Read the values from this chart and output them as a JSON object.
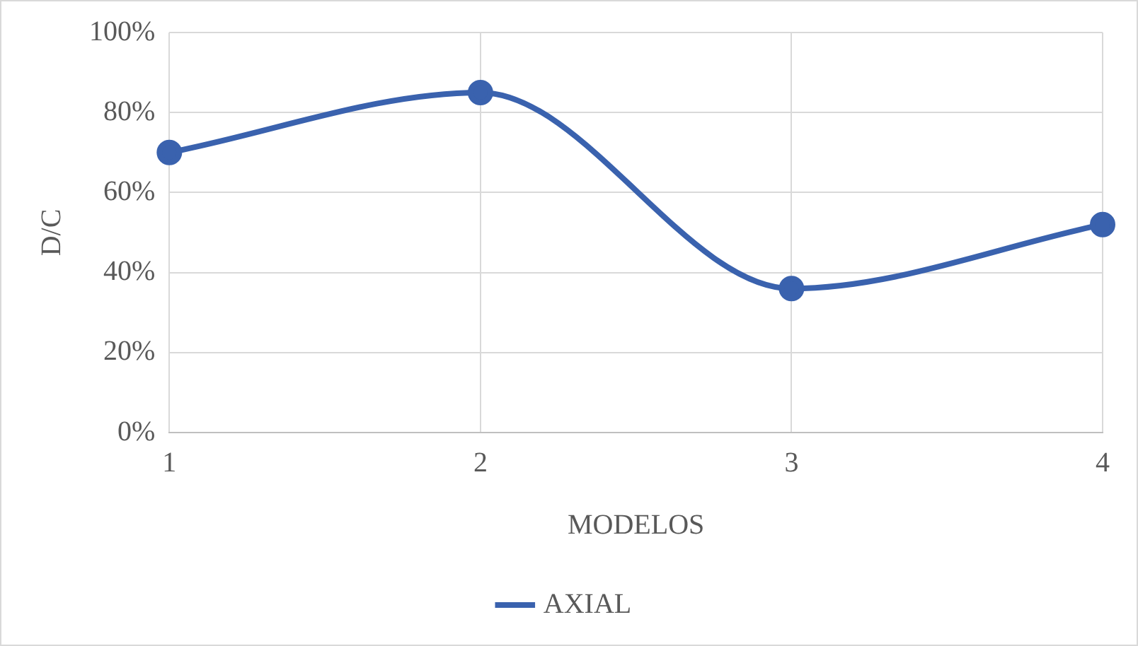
{
  "chart_data": {
    "type": "line",
    "xlabel": "MODELOS",
    "ylabel": "D/C",
    "categories": [
      "1",
      "2",
      "3",
      "4"
    ],
    "series": [
      {
        "name": "AXIAL",
        "color": "#3a62ae",
        "values": [
          70,
          85,
          36,
          52
        ]
      }
    ],
    "ylim": [
      0,
      100
    ],
    "yticks": [
      {
        "value": 0,
        "label": "0%"
      },
      {
        "value": 20,
        "label": "20%"
      },
      {
        "value": 40,
        "label": "40%"
      },
      {
        "value": 60,
        "label": "60%"
      },
      {
        "value": 80,
        "label": "80%"
      },
      {
        "value": 100,
        "label": "100%"
      }
    ],
    "grid": true,
    "legend": "bottom",
    "marker": "circle",
    "line_style": "solid"
  }
}
